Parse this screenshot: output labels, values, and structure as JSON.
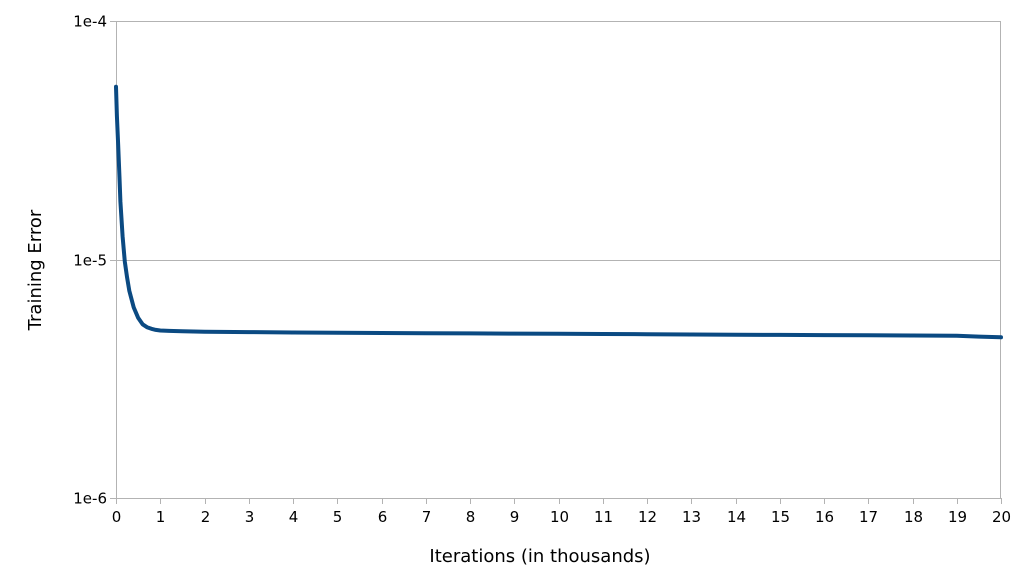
{
  "chart_data": {
    "type": "line",
    "title": "",
    "xlabel": "Iterations (in thousands)",
    "ylabel": "Training Error",
    "xlim": [
      0,
      20
    ],
    "ylim": [
      1e-06,
      0.0001
    ],
    "yscale": "log",
    "x_ticks": [
      "0",
      "1",
      "2",
      "3",
      "4",
      "5",
      "6",
      "7",
      "8",
      "9",
      "10",
      "11",
      "12",
      "13",
      "14",
      "15",
      "16",
      "17",
      "18",
      "19",
      "20"
    ],
    "y_ticks": [
      {
        "value": 0.0001,
        "label": "1e-4"
      },
      {
        "value": 1e-05,
        "label": "1e-5"
      },
      {
        "value": 1e-06,
        "label": "1e-6"
      }
    ],
    "grid": "horizontal major lines",
    "legend": "none",
    "colors": {
      "series": "#0b4a82",
      "grid": "#b3b3b3",
      "axis": "#b3b3b3"
    },
    "series": [
      {
        "x": [
          0,
          0.02,
          0.05,
          0.08,
          0.1,
          0.15,
          0.2,
          0.25,
          0.3,
          0.4,
          0.5,
          0.6,
          0.7,
          0.8,
          0.9,
          1.0,
          1.2,
          1.5,
          2,
          3,
          4,
          5,
          6,
          7,
          8,
          9,
          10,
          11,
          12,
          13,
          14,
          15,
          16,
          17,
          18,
          19,
          19.5,
          20
        ],
        "y": [
          5.3e-05,
          4e-05,
          3e-05,
          2.2e-05,
          1.75e-05,
          1.25e-05,
          9.8e-06,
          8.4e-06,
          7.4e-06,
          6.3e-06,
          5.7e-06,
          5.35e-06,
          5.2e-06,
          5.12e-06,
          5.07e-06,
          5.04e-06,
          5.02e-06,
          5e-06,
          4.98e-06,
          4.96e-06,
          4.94e-06,
          4.93e-06,
          4.92e-06,
          4.91e-06,
          4.9e-06,
          4.89e-06,
          4.88e-06,
          4.87e-06,
          4.86e-06,
          4.85e-06,
          4.84e-06,
          4.83e-06,
          4.82e-06,
          4.81e-06,
          4.8e-06,
          4.79e-06,
          4.75e-06,
          4.72e-06
        ]
      }
    ]
  }
}
